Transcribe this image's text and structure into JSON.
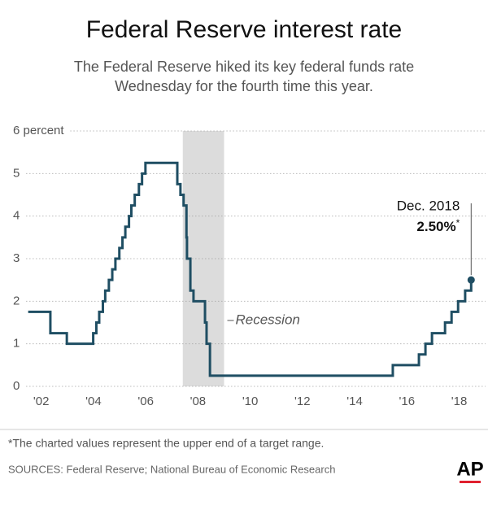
{
  "chart_data": {
    "type": "line",
    "title": "Federal Reserve interest rate",
    "subtitle": [
      "The Federal Reserve hiked its key federal funds rate",
      "Wednesday for the fourth time this year."
    ],
    "step": true,
    "series": [
      {
        "color": "#1f4e63",
        "x": [
          2002.0,
          2002.85,
          2003.48,
          2004.49,
          2004.61,
          2004.72,
          2004.86,
          2004.95,
          2005.09,
          2005.22,
          2005.34,
          2005.49,
          2005.61,
          2005.72,
          2005.86,
          2005.95,
          2006.08,
          2006.24,
          2006.36,
          2006.49,
          2007.71,
          2007.83,
          2007.95,
          2008.06,
          2008.08,
          2008.21,
          2008.33,
          2008.77,
          2008.83,
          2008.96,
          2015.96,
          2016.96,
          2017.21,
          2017.46,
          2017.96,
          2018.21,
          2018.46,
          2018.73,
          2018.96
        ],
        "values": [
          1.75,
          1.25,
          1.0,
          1.25,
          1.5,
          1.75,
          2.0,
          2.25,
          2.5,
          2.75,
          3.0,
          3.25,
          3.5,
          3.75,
          4.0,
          4.25,
          4.5,
          4.75,
          5.0,
          5.25,
          4.75,
          4.5,
          4.25,
          3.5,
          3.0,
          2.25,
          2.0,
          1.5,
          1.0,
          0.25,
          0.5,
          0.75,
          1.0,
          1.25,
          1.5,
          1.75,
          2.0,
          2.25,
          2.5
        ]
      }
    ],
    "recession": {
      "label": "Recession",
      "range": [
        2007.92,
        2009.5
      ],
      "color": "#dcdcdc"
    },
    "annotation": {
      "date": "Dec. 2018",
      "value": "2.50%",
      "mark": "*"
    },
    "xlim": [
      2001.7,
      2019.2
    ],
    "xticks": [
      {
        "value": 2002.5,
        "label": "'02"
      },
      {
        "value": 2004.5,
        "label": "'04"
      },
      {
        "value": 2006.5,
        "label": "'06"
      },
      {
        "value": 2008.5,
        "label": "'08"
      },
      {
        "value": 2010.5,
        "label": "'10"
      },
      {
        "value": 2012.5,
        "label": "'12"
      },
      {
        "value": 2014.5,
        "label": "'14"
      },
      {
        "value": 2016.5,
        "label": "'16"
      },
      {
        "value": 2018.5,
        "label": "'18"
      }
    ],
    "ylim": [
      0,
      6
    ],
    "yticks": [
      0,
      1,
      2,
      3,
      4,
      5,
      {
        "value": 6,
        "label": "6 percent"
      }
    ],
    "grid": true
  },
  "footer": {
    "note": "*The charted values represent the upper end of a target range.",
    "sources": "SOURCES: Federal Reserve; National Bureau of Economic Research",
    "logo": "AP"
  }
}
